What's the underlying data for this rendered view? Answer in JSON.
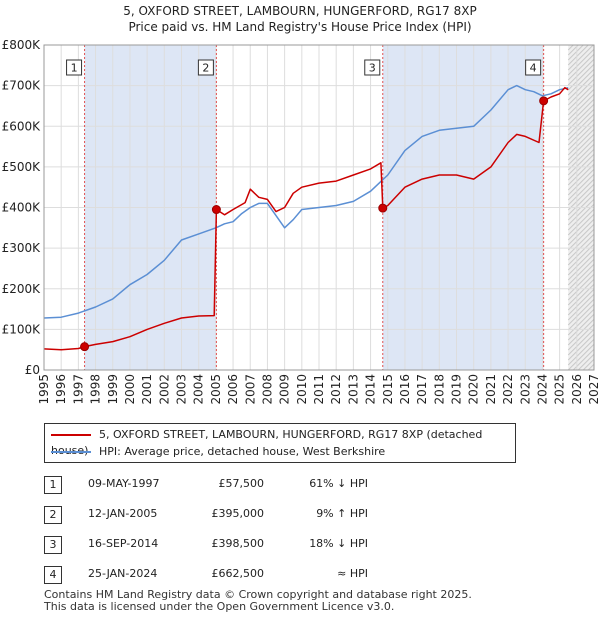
{
  "title_line1": "5, OXFORD STREET, LAMBOURN, HUNGERFORD, RG17 8XP",
  "title_line2": "Price paid vs. HM Land Registry's House Price Index (HPI)",
  "colors": {
    "property": "#cc0000",
    "hpi": "#5b8fd4",
    "shade": "#dde6f5",
    "marker_line": "#e05050"
  },
  "chart_data": {
    "type": "line",
    "xlim": [
      1995,
      2027
    ],
    "ylim": [
      0,
      800000
    ],
    "x_ticks": [
      "1995",
      "1996",
      "1997",
      "1998",
      "1999",
      "2000",
      "2001",
      "2002",
      "2003",
      "2004",
      "2005",
      "2006",
      "2007",
      "2008",
      "2009",
      "2010",
      "2011",
      "2012",
      "2013",
      "2014",
      "2015",
      "2016",
      "2017",
      "2018",
      "2019",
      "2020",
      "2021",
      "2022",
      "2023",
      "2024",
      "2025",
      "2026",
      "2027"
    ],
    "y_ticks": [
      {
        "value": 0,
        "label": "£0"
      },
      {
        "value": 100000,
        "label": "£100K"
      },
      {
        "value": 200000,
        "label": "£200K"
      },
      {
        "value": 300000,
        "label": "£300K"
      },
      {
        "value": 400000,
        "label": "£400K"
      },
      {
        "value": 500000,
        "label": "£500K"
      },
      {
        "value": 600000,
        "label": "£600K"
      },
      {
        "value": 700000,
        "label": "£700K"
      },
      {
        "value": 800000,
        "label": "£800K"
      }
    ],
    "shaded_periods": [
      [
        1997.36,
        2005.03
      ],
      [
        2014.71,
        2024.07
      ]
    ],
    "forecast_start": 2025.5,
    "series": [
      {
        "name": "5, OXFORD STREET, LAMBOURN, HUNGERFORD, RG17 8XP (detached house)",
        "color": "#cc0000",
        "points": [
          [
            1995,
            52000
          ],
          [
            1996,
            50000
          ],
          [
            1997,
            53000
          ],
          [
            1997.36,
            57500
          ],
          [
            1998,
            63000
          ],
          [
            1999,
            70000
          ],
          [
            2000,
            82000
          ],
          [
            2001,
            100000
          ],
          [
            2002,
            115000
          ],
          [
            2003,
            128000
          ],
          [
            2004,
            133000
          ],
          [
            2004.9,
            134000
          ],
          [
            2005.03,
            395000
          ],
          [
            2005.5,
            382000
          ],
          [
            2006,
            395000
          ],
          [
            2006.7,
            412000
          ],
          [
            2007,
            445000
          ],
          [
            2007.5,
            425000
          ],
          [
            2008,
            420000
          ],
          [
            2008.5,
            390000
          ],
          [
            2009,
            400000
          ],
          [
            2009.5,
            435000
          ],
          [
            2010,
            450000
          ],
          [
            2011,
            460000
          ],
          [
            2012,
            465000
          ],
          [
            2013,
            480000
          ],
          [
            2014,
            495000
          ],
          [
            2014.6,
            510000
          ],
          [
            2014.71,
            398500
          ],
          [
            2015,
            405000
          ],
          [
            2016,
            450000
          ],
          [
            2017,
            470000
          ],
          [
            2018,
            480000
          ],
          [
            2019,
            480000
          ],
          [
            2020,
            470000
          ],
          [
            2021,
            500000
          ],
          [
            2022,
            560000
          ],
          [
            2022.5,
            580000
          ],
          [
            2023,
            575000
          ],
          [
            2023.8,
            560000
          ],
          [
            2024.07,
            662500
          ],
          [
            2024.5,
            672000
          ],
          [
            2025,
            680000
          ],
          [
            2025.3,
            695000
          ],
          [
            2025.5,
            690000
          ]
        ]
      },
      {
        "name": "HPI: Average price, detached house, West Berkshire",
        "color": "#5b8fd4",
        "points": [
          [
            1995,
            128000
          ],
          [
            1996,
            130000
          ],
          [
            1997,
            140000
          ],
          [
            1998,
            155000
          ],
          [
            1999,
            175000
          ],
          [
            2000,
            210000
          ],
          [
            2001,
            235000
          ],
          [
            2002,
            270000
          ],
          [
            2003,
            320000
          ],
          [
            2004,
            335000
          ],
          [
            2005,
            350000
          ],
          [
            2005.5,
            360000
          ],
          [
            2006,
            365000
          ],
          [
            2006.5,
            385000
          ],
          [
            2007,
            400000
          ],
          [
            2007.5,
            410000
          ],
          [
            2008,
            410000
          ],
          [
            2008.5,
            380000
          ],
          [
            2009,
            350000
          ],
          [
            2009.5,
            370000
          ],
          [
            2010,
            395000
          ],
          [
            2011,
            400000
          ],
          [
            2012,
            405000
          ],
          [
            2013,
            415000
          ],
          [
            2014,
            440000
          ],
          [
            2014.5,
            460000
          ],
          [
            2015,
            480000
          ],
          [
            2016,
            540000
          ],
          [
            2017,
            575000
          ],
          [
            2018,
            590000
          ],
          [
            2019,
            595000
          ],
          [
            2020,
            600000
          ],
          [
            2021,
            640000
          ],
          [
            2022,
            690000
          ],
          [
            2022.5,
            700000
          ],
          [
            2023,
            690000
          ],
          [
            2023.5,
            685000
          ],
          [
            2024,
            675000
          ],
          [
            2024.5,
            680000
          ],
          [
            2025,
            690000
          ],
          [
            2025.5,
            695000
          ]
        ]
      }
    ],
    "markers": [
      {
        "label": "1",
        "x": 1997.36,
        "y": 57500
      },
      {
        "label": "2",
        "x": 2005.03,
        "y": 395000
      },
      {
        "label": "3",
        "x": 2014.71,
        "y": 398500
      },
      {
        "label": "4",
        "x": 2024.07,
        "y": 662500
      }
    ]
  },
  "legend": {
    "property": "5, OXFORD STREET, LAMBOURN, HUNGERFORD, RG17 8XP (detached house)",
    "hpi": "HPI: Average price, detached house, West Berkshire"
  },
  "sales": [
    {
      "num": "1",
      "date": "09-MAY-1997",
      "price": "£57,500",
      "hpi": "61% ↓ HPI"
    },
    {
      "num": "2",
      "date": "12-JAN-2005",
      "price": "£395,000",
      "hpi": "9% ↑ HPI"
    },
    {
      "num": "3",
      "date": "16-SEP-2014",
      "price": "£398,500",
      "hpi": "18% ↓ HPI"
    },
    {
      "num": "4",
      "date": "25-JAN-2024",
      "price": "£662,500",
      "hpi": "≈ HPI"
    }
  ],
  "footer_line1": "Contains HM Land Registry data © Crown copyright and database right 2025.",
  "footer_line2": "This data is licensed under the Open Government Licence v3.0."
}
